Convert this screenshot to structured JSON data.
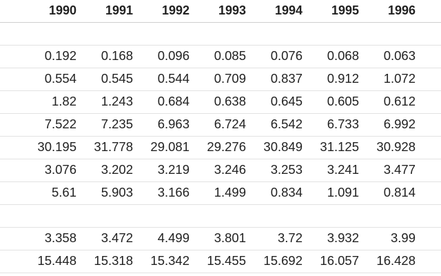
{
  "table": {
    "header": [
      "1990",
      "1991",
      "1992",
      "1993",
      "1994",
      "1995",
      "1996"
    ],
    "rows": [
      null,
      [
        "0.192",
        "0.168",
        "0.096",
        "0.085",
        "0.076",
        "0.068",
        "0.063"
      ],
      [
        "0.554",
        "0.545",
        "0.544",
        "0.709",
        "0.837",
        "0.912",
        "1.072"
      ],
      [
        "1.82",
        "1.243",
        "0.684",
        "0.638",
        "0.645",
        "0.605",
        "0.612"
      ],
      [
        "7.522",
        "7.235",
        "6.963",
        "6.724",
        "6.542",
        "6.733",
        "6.992"
      ],
      [
        "30.195",
        "31.778",
        "29.081",
        "29.276",
        "30.849",
        "31.125",
        "30.928"
      ],
      [
        "3.076",
        "3.202",
        "3.219",
        "3.246",
        "3.253",
        "3.241",
        "3.477"
      ],
      [
        "5.61",
        "5.903",
        "3.166",
        "1.499",
        "0.834",
        "1.091",
        "0.814"
      ],
      null,
      [
        "3.358",
        "3.472",
        "4.499",
        "3.801",
        "3.72",
        "3.932",
        "3.99"
      ],
      [
        "15.448",
        "15.318",
        "15.342",
        "15.455",
        "15.692",
        "16.057",
        "16.428"
      ]
    ]
  }
}
